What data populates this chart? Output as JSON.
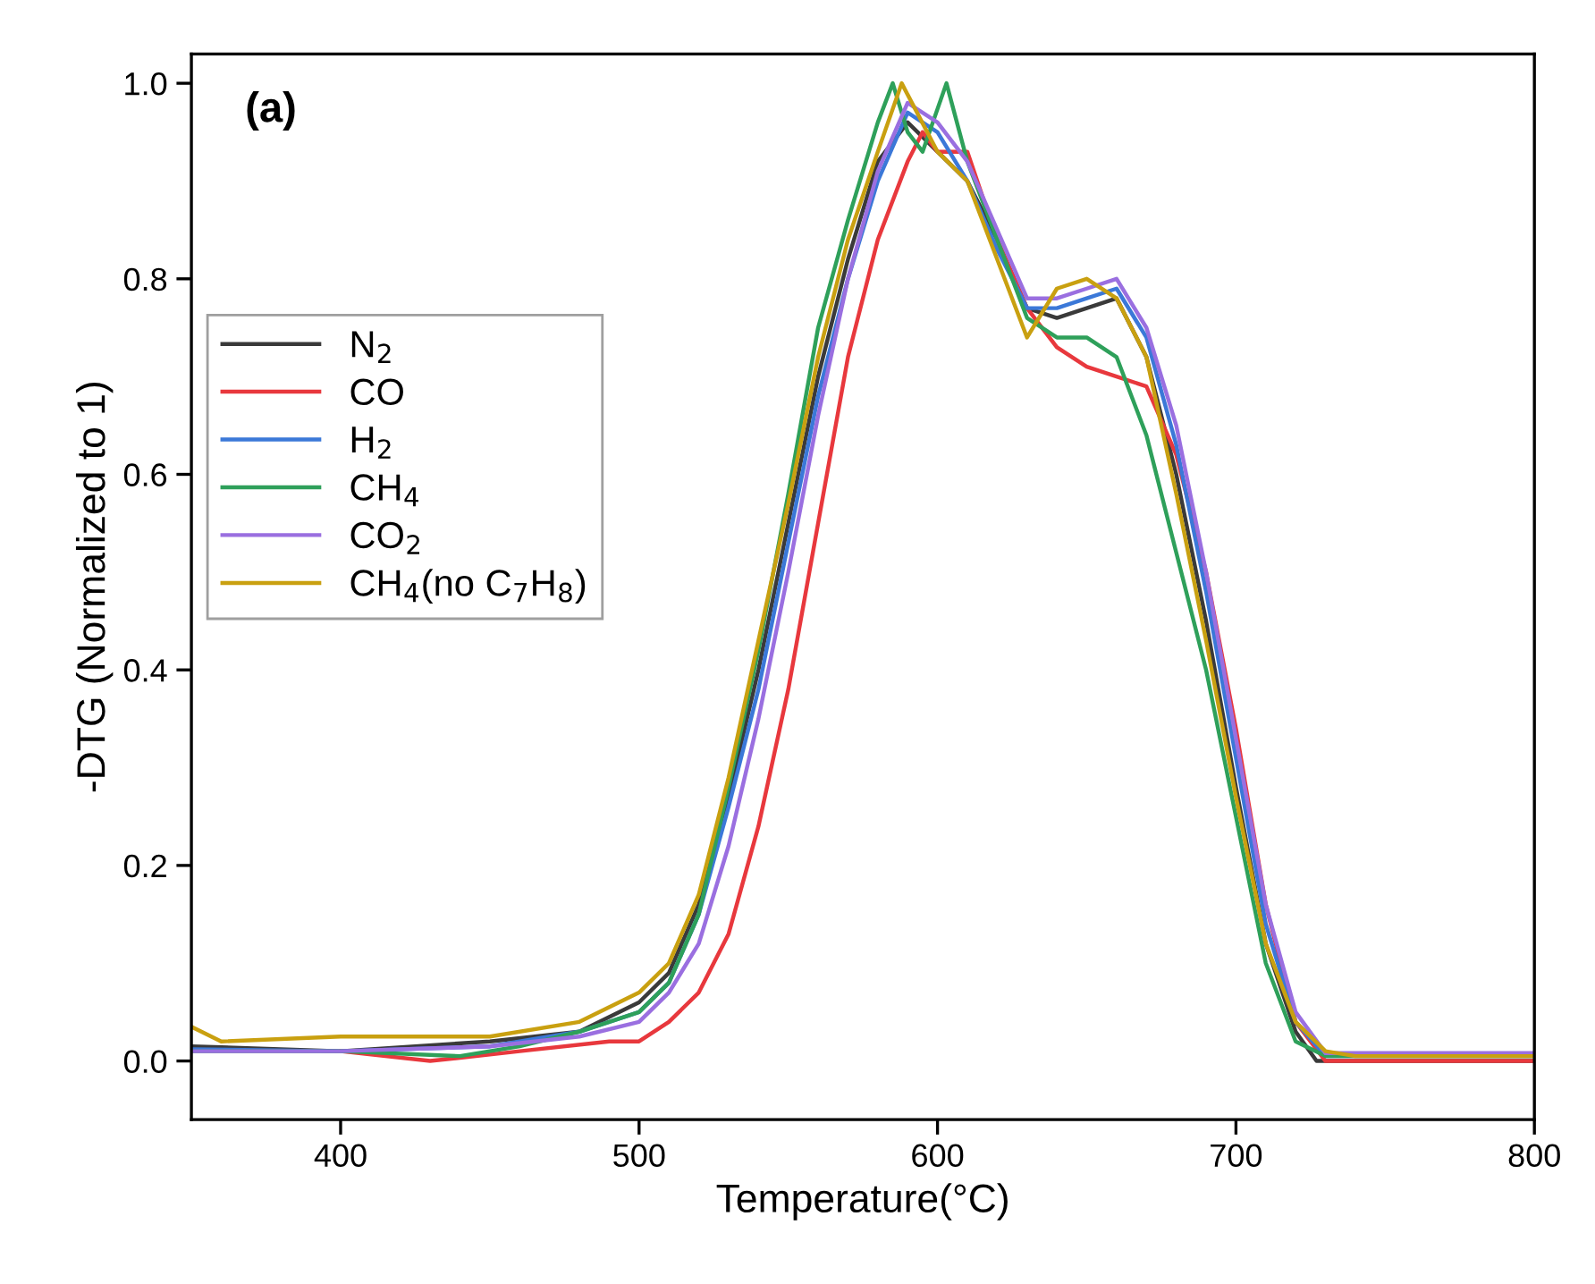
{
  "chart_data": {
    "type": "line",
    "xlabel": "Temperature(°C)",
    "ylabel": "-DTG (Normalized to 1)",
    "annotations": [
      "(a)"
    ],
    "xlim": [
      350,
      800
    ],
    "xticks": [
      400,
      500,
      600,
      700,
      800
    ],
    "ylim": [
      -0.06,
      1.03
    ],
    "yticks": [
      {
        "value": 0,
        "label": "0.0"
      },
      0.2,
      0.4,
      0.6,
      0.8,
      {
        "value": 1,
        "label": "1.0"
      }
    ],
    "grid": false,
    "legend": "top left",
    "marker": "none",
    "line_style": "solid",
    "series": [
      {
        "name": "N$_{2}$",
        "color": "#3a3a3a",
        "x": [
          350,
          400,
          450,
          480,
          500,
          510,
          520,
          530,
          540,
          550,
          560,
          570,
          580,
          590,
          600,
          610,
          620,
          630,
          640,
          650,
          660,
          670,
          680,
          690,
          700,
          710,
          720,
          727,
          800
        ],
        "values": [
          0.015,
          0.01,
          0.02,
          0.03,
          0.06,
          0.09,
          0.16,
          0.27,
          0.4,
          0.55,
          0.7,
          0.82,
          0.92,
          0.96,
          0.93,
          0.9,
          0.84,
          0.77,
          0.76,
          0.77,
          0.78,
          0.72,
          0.6,
          0.45,
          0.28,
          0.12,
          0.03,
          0.0,
          0.0
        ]
      },
      {
        "name": "CO",
        "color": "#e8383d",
        "x": [
          400,
          430,
          460,
          490,
          500,
          510,
          520,
          530,
          540,
          550,
          560,
          570,
          580,
          590,
          595,
          600,
          610,
          620,
          630,
          640,
          650,
          660,
          670,
          680,
          690,
          700,
          710,
          720,
          730,
          800
        ],
        "values": [
          0.01,
          0.0,
          0.01,
          0.02,
          0.02,
          0.04,
          0.07,
          0.13,
          0.24,
          0.38,
          0.55,
          0.72,
          0.84,
          0.92,
          0.95,
          0.93,
          0.93,
          0.84,
          0.77,
          0.73,
          0.71,
          0.7,
          0.69,
          0.62,
          0.5,
          0.34,
          0.16,
          0.04,
          0.0,
          0.0
        ]
      },
      {
        "name": "H$_{2}$",
        "color": "#3b78d8",
        "x": [
          350,
          400,
          450,
          480,
          500,
          510,
          520,
          530,
          540,
          550,
          560,
          570,
          580,
          590,
          600,
          610,
          620,
          630,
          640,
          650,
          660,
          670,
          680,
          690,
          700,
          710,
          720,
          730,
          800
        ],
        "values": [
          0.012,
          0.01,
          0.015,
          0.03,
          0.05,
          0.08,
          0.15,
          0.26,
          0.38,
          0.53,
          0.68,
          0.8,
          0.9,
          0.97,
          0.95,
          0.9,
          0.83,
          0.77,
          0.77,
          0.78,
          0.79,
          0.74,
          0.63,
          0.48,
          0.31,
          0.14,
          0.04,
          0.005,
          0.005
        ]
      },
      {
        "name": "CH$_{4}$",
        "color": "#2ea05a",
        "x": [
          350,
          400,
          440,
          460,
          480,
          500,
          510,
          520,
          530,
          540,
          550,
          560,
          570,
          580,
          585,
          590,
          595,
          603,
          610,
          620,
          630,
          640,
          650,
          660,
          670,
          680,
          690,
          700,
          710,
          720,
          730,
          800
        ],
        "values": [
          0.01,
          0.01,
          0.005,
          0.015,
          0.03,
          0.05,
          0.08,
          0.15,
          0.28,
          0.42,
          0.58,
          0.75,
          0.86,
          0.96,
          1.0,
          0.95,
          0.93,
          1.0,
          0.92,
          0.84,
          0.76,
          0.74,
          0.74,
          0.72,
          0.64,
          0.52,
          0.4,
          0.25,
          0.1,
          0.02,
          0.005,
          0.005
        ]
      },
      {
        "name": "CO$_{2}$",
        "color": "#9a6fe0",
        "x": [
          350,
          400,
          450,
          480,
          500,
          510,
          520,
          530,
          540,
          550,
          560,
          570,
          580,
          590,
          600,
          610,
          620,
          630,
          640,
          650,
          660,
          670,
          680,
          690,
          700,
          710,
          720,
          730,
          800
        ],
        "values": [
          0.01,
          0.01,
          0.015,
          0.025,
          0.04,
          0.07,
          0.12,
          0.22,
          0.35,
          0.5,
          0.66,
          0.8,
          0.91,
          0.98,
          0.96,
          0.92,
          0.85,
          0.78,
          0.78,
          0.79,
          0.8,
          0.75,
          0.65,
          0.5,
          0.33,
          0.16,
          0.05,
          0.008,
          0.008
        ]
      },
      {
        "name": "CH$_{4}$(no C$_{7}$H$_{8}$)",
        "color": "#c9a010",
        "x": [
          350,
          360,
          400,
          450,
          480,
          500,
          510,
          520,
          530,
          540,
          550,
          560,
          570,
          580,
          588,
          600,
          610,
          620,
          630,
          640,
          650,
          660,
          670,
          680,
          690,
          700,
          710,
          720,
          730,
          740,
          800
        ],
        "values": [
          0.035,
          0.02,
          0.025,
          0.025,
          0.04,
          0.07,
          0.1,
          0.17,
          0.29,
          0.43,
          0.57,
          0.72,
          0.84,
          0.93,
          1.0,
          0.93,
          0.9,
          0.82,
          0.74,
          0.79,
          0.8,
          0.78,
          0.72,
          0.58,
          0.43,
          0.27,
          0.12,
          0.04,
          0.01,
          0.005,
          0.005
        ]
      }
    ]
  }
}
